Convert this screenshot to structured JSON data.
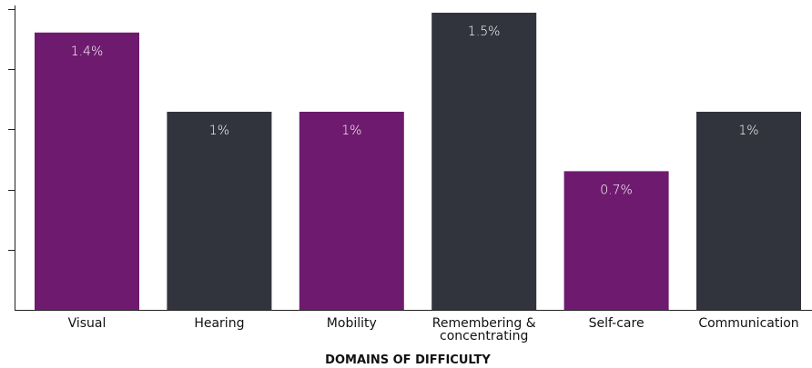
{
  "chart_data": {
    "type": "bar",
    "categories": [
      "Visual",
      "Hearing",
      "Mobility",
      "Remembering & concentrating",
      "Self-care",
      "Communication"
    ],
    "category_lines": [
      [
        "Visual"
      ],
      [
        "Hearing"
      ],
      [
        "Mobility"
      ],
      [
        "Remembering &",
        "concentrating"
      ],
      [
        "Self-care"
      ],
      [
        "Communication"
      ]
    ],
    "values": [
      1.4,
      1,
      1,
      1.5,
      0.7,
      1
    ],
    "data_labels": [
      "1.4%",
      "1%",
      "1%",
      "1.5%",
      "0.7%",
      "1%"
    ],
    "bar_colors": [
      "#6e1b6f",
      "#32343d",
      "#6e1b6f",
      "#32343d",
      "#6e1b6f",
      "#32343d"
    ],
    "xlabel": "DOMAINS OF DIFFICULTY",
    "ylabel": "",
    "ylim": [
      0,
      1.5
    ]
  }
}
